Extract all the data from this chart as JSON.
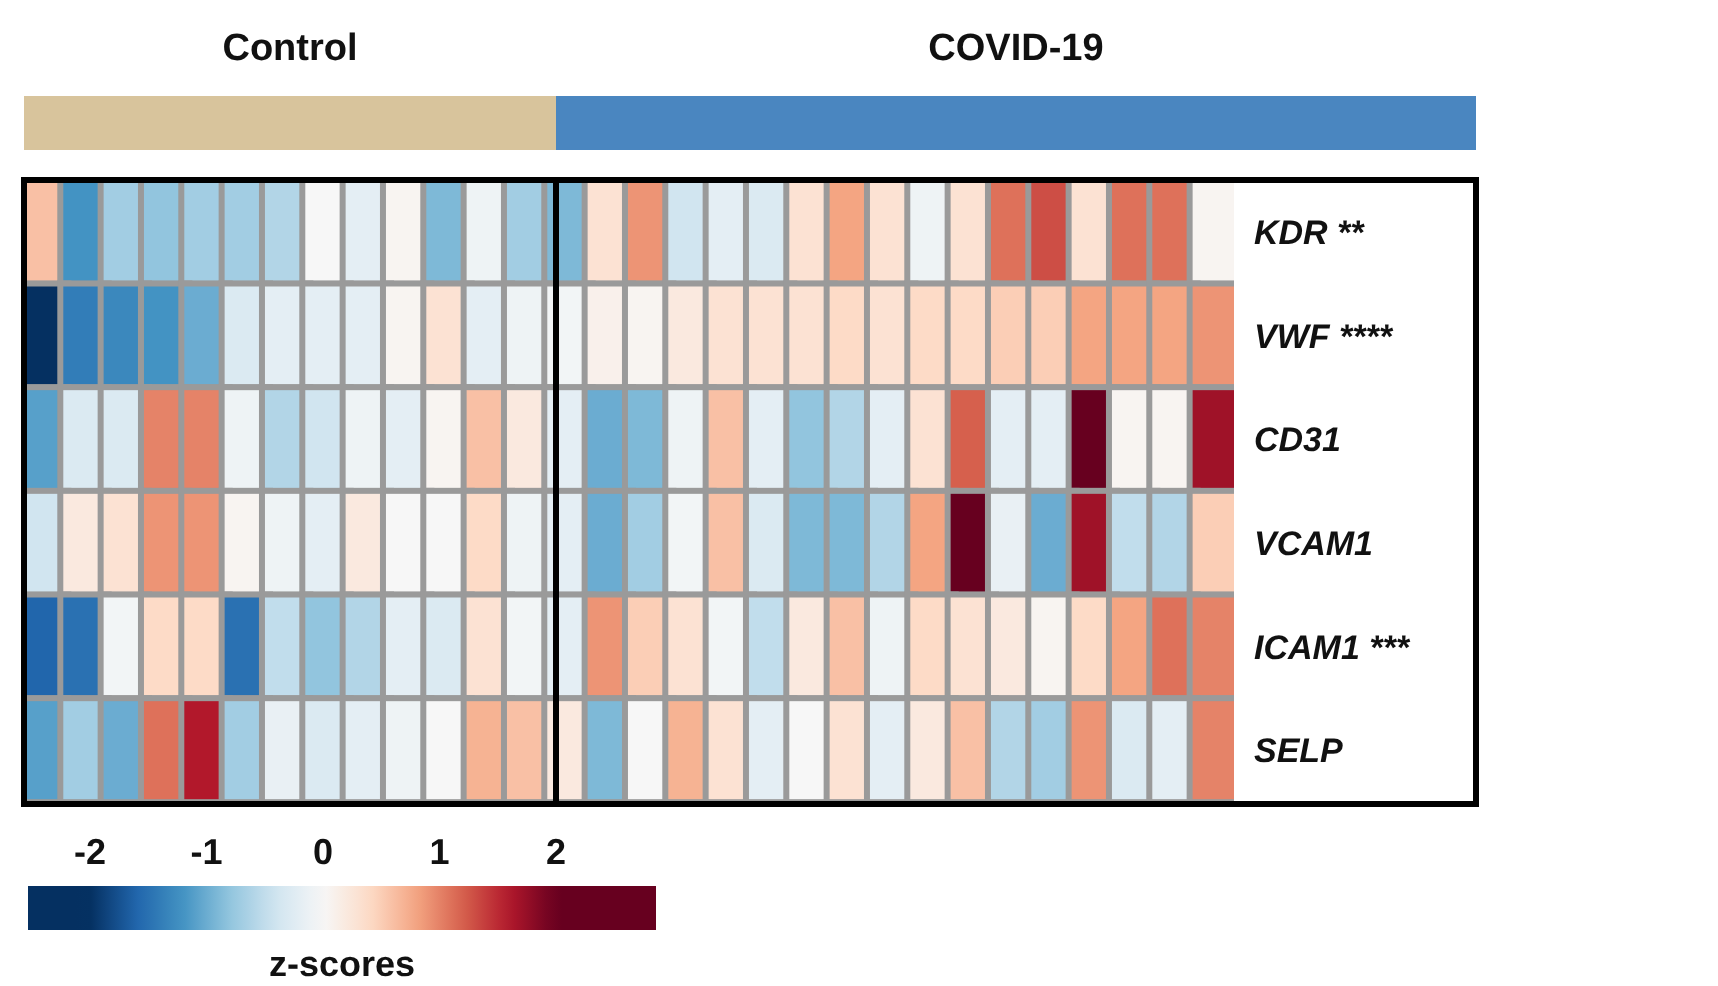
{
  "chart_data": {
    "type": "heatmap",
    "categories": [
      null,
      null,
      null,
      null,
      null,
      null,
      null,
      null,
      null,
      null,
      null,
      null,
      null,
      null,
      null,
      null,
      null,
      null,
      null,
      null,
      null,
      null,
      null,
      null,
      null,
      null,
      null,
      null,
      null,
      null
    ],
    "y_categories": [
      "KDR **",
      "VWF ****",
      "CD31",
      "VCAM1",
      "ICAM1 ***",
      "SELP"
    ],
    "cells": [
      [
        0.6,
        -1.2,
        -0.7,
        -0.8,
        -0.7,
        -0.7,
        -0.6,
        0.0,
        -0.2,
        0.05,
        -0.9,
        -0.1,
        -0.7,
        -0.9,
        0.3,
        0.9,
        -0.4,
        -0.2,
        -0.3,
        0.3,
        0.8,
        0.3,
        -0.1,
        0.3,
        1.1,
        1.3,
        0.3,
        1.1,
        1.1,
        0.05
      ],
      [
        -2.0,
        -1.4,
        -1.3,
        -1.2,
        -1.0,
        -0.3,
        -0.2,
        -0.2,
        -0.2,
        0.05,
        0.3,
        -0.2,
        -0.1,
        -0.05,
        0.1,
        0.05,
        0.2,
        0.3,
        0.3,
        0.3,
        0.4,
        0.3,
        0.4,
        0.4,
        0.5,
        0.5,
        0.8,
        0.8,
        0.8,
        0.9
      ],
      [
        -1.1,
        -0.3,
        -0.3,
        1.0,
        1.0,
        -0.1,
        -0.6,
        -0.4,
        -0.1,
        -0.2,
        0.05,
        0.6,
        0.2,
        -0.2,
        -1.0,
        -0.9,
        -0.1,
        0.6,
        -0.2,
        -0.8,
        -0.6,
        -0.2,
        0.3,
        1.2,
        -0.2,
        -0.2,
        2.0,
        0.05,
        0.05,
        1.7
      ],
      [
        -0.4,
        0.2,
        0.3,
        0.9,
        0.9,
        0.05,
        -0.1,
        -0.2,
        0.2,
        0.0,
        0.0,
        0.4,
        -0.1,
        -0.2,
        -1.0,
        -0.7,
        -0.05,
        0.6,
        -0.3,
        -0.9,
        -0.9,
        -0.6,
        0.8,
        2.0,
        -0.15,
        -1.0,
        1.7,
        -0.5,
        -0.6,
        0.5
      ],
      [
        -1.6,
        -1.5,
        -0.05,
        0.4,
        0.4,
        -1.5,
        -0.5,
        -0.8,
        -0.6,
        -0.2,
        -0.3,
        0.3,
        -0.05,
        -0.2,
        0.9,
        0.5,
        0.3,
        -0.05,
        -0.5,
        0.2,
        0.6,
        -0.1,
        0.4,
        0.3,
        0.2,
        0.05,
        0.4,
        0.8,
        1.1,
        1.0
      ],
      [
        -1.1,
        -0.7,
        -1.0,
        1.1,
        1.6,
        -0.7,
        -0.15,
        -0.3,
        -0.2,
        -0.1,
        0.0,
        0.7,
        0.6,
        0.2,
        -0.9,
        0.0,
        0.7,
        0.3,
        -0.2,
        0.0,
        0.3,
        -0.2,
        0.2,
        0.6,
        -0.6,
        -0.7,
        0.9,
        -0.3,
        -0.2,
        1.0
      ]
    ],
    "clim": [
      -2,
      2
    ],
    "cticks": [
      -2,
      -1,
      0,
      1,
      2
    ],
    "clabel": "z-scores",
    "annotations": [
      "Control",
      "COVID-19"
    ]
  }
}
